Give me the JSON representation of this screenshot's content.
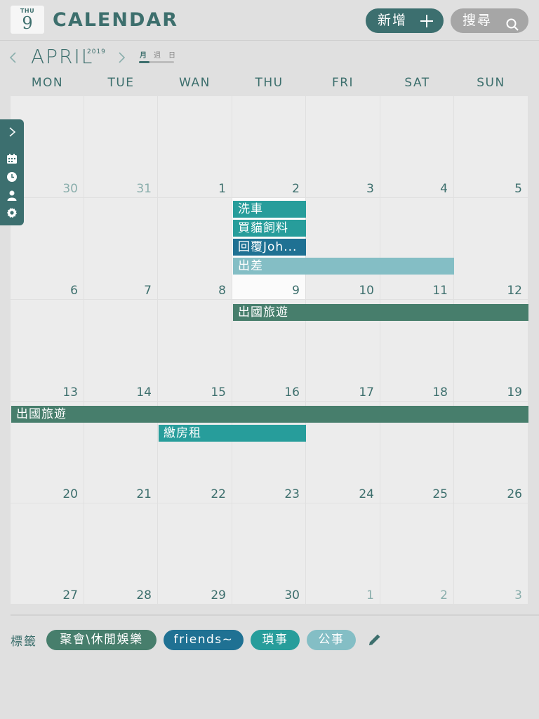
{
  "header": {
    "badge_dow": "THU",
    "badge_day": "9",
    "title": "CALENDAR",
    "add_label": "新增",
    "search_label": "搜尋"
  },
  "subheader": {
    "month": "APRIL",
    "year": "2019",
    "view_tabs": [
      "月",
      "週",
      "日"
    ],
    "active_view": "月"
  },
  "weekdays": [
    "MON",
    "TUE",
    "WAN",
    "THU",
    "FRI",
    "SAT",
    "SUN"
  ],
  "weeks": [
    [
      {
        "n": "30",
        "other": true
      },
      {
        "n": "31",
        "other": true
      },
      {
        "n": "1"
      },
      {
        "n": "2"
      },
      {
        "n": "3"
      },
      {
        "n": "4"
      },
      {
        "n": "5"
      }
    ],
    [
      {
        "n": "6"
      },
      {
        "n": "7"
      },
      {
        "n": "8"
      },
      {
        "n": "9",
        "today": true
      },
      {
        "n": "10"
      },
      {
        "n": "11"
      },
      {
        "n": "12"
      }
    ],
    [
      {
        "n": "13"
      },
      {
        "n": "14"
      },
      {
        "n": "15"
      },
      {
        "n": "16"
      },
      {
        "n": "17"
      },
      {
        "n": "18"
      },
      {
        "n": "19"
      }
    ],
    [
      {
        "n": "20"
      },
      {
        "n": "21"
      },
      {
        "n": "22"
      },
      {
        "n": "23"
      },
      {
        "n": "24"
      },
      {
        "n": "25"
      },
      {
        "n": "26"
      }
    ],
    [
      {
        "n": "27"
      },
      {
        "n": "28"
      },
      {
        "n": "29"
      },
      {
        "n": "30"
      },
      {
        "n": "1",
        "other": true
      },
      {
        "n": "2",
        "other": true
      },
      {
        "n": "3",
        "other": true
      }
    ]
  ],
  "events": [
    {
      "title": "洗車",
      "week": 1,
      "col": 3,
      "span": 1,
      "slot": 0,
      "color": "#279d9b"
    },
    {
      "title": "買貓飼料",
      "week": 1,
      "col": 3,
      "span": 1,
      "slot": 1,
      "color": "#279d9b"
    },
    {
      "title": "回覆Joh...",
      "week": 1,
      "col": 3,
      "span": 1,
      "slot": 2,
      "color": "#1f7193"
    },
    {
      "title": "出差",
      "week": 1,
      "col": 3,
      "span": 3,
      "slot": 3,
      "color": "#84bec5"
    },
    {
      "title": "出國旅遊",
      "week": 2,
      "col": 3,
      "span": 4,
      "slot": 0,
      "color": "#477e6c"
    },
    {
      "title": "出國旅遊",
      "week": 3,
      "col": 0,
      "span": 7,
      "slot": 0,
      "color": "#477e6c"
    },
    {
      "title": "繳房租",
      "week": 3,
      "col": 2,
      "span": 2,
      "slot": 1,
      "color": "#279d9b"
    }
  ],
  "side_rail": {
    "icons": [
      "chevron-right-icon",
      "calendar-icon",
      "clock-icon",
      "person-icon",
      "settings-icon"
    ]
  },
  "tags": {
    "label": "標籤",
    "items": [
      {
        "label": "聚會\\休閒娛樂",
        "color": "#477e6c"
      },
      {
        "label": "friends~",
        "color": "#1f7193"
      },
      {
        "label": "瑣事",
        "color": "#279d9b"
      },
      {
        "label": "公事",
        "color": "#84bec5"
      }
    ]
  },
  "colors": {
    "brand": "#3c6f6f",
    "search_button": "#a6a6a6",
    "cell": "#ececec",
    "today_cell": "#fbfbfb"
  }
}
